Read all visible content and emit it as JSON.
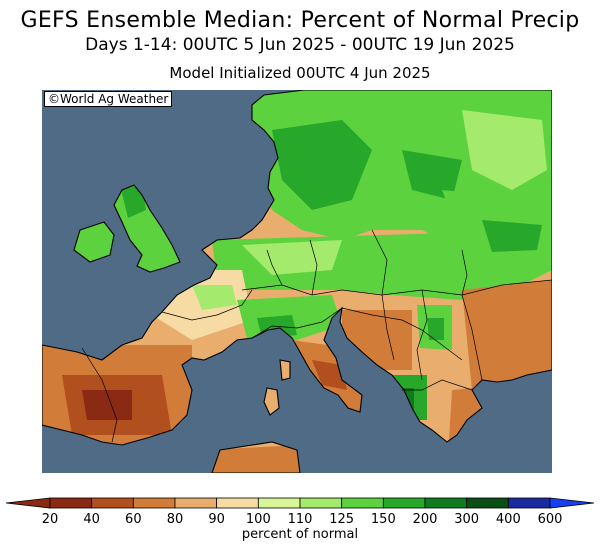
{
  "header": {
    "title": "GEFS Ensemble Median: Percent of Normal Precip",
    "period": "Days 1-14: 00UTC 5 Jun 2025 - 00UTC 19 Jun 2025",
    "init": "Model Initialized 00UTC 4 Jun 2025"
  },
  "map": {
    "credit": "©World Ag Weather",
    "region": "Europe",
    "ocean_color": "#4f6b86",
    "border_color": "#000000"
  },
  "legend": {
    "label": "percent of normal",
    "ticks": [
      "20",
      "40",
      "60",
      "80",
      "90",
      "100",
      "110",
      "125",
      "150",
      "200",
      "300",
      "400",
      "600"
    ],
    "colors": [
      "#8b2a14",
      "#b24f1f",
      "#d27c3a",
      "#e9ae6e",
      "#f6dca4",
      "#d8f59a",
      "#a4ea6c",
      "#5bd23e",
      "#27a82a",
      "#0f7a1e",
      "#0a4e14",
      "#1a2ba0",
      "#1640f0"
    ]
  }
}
